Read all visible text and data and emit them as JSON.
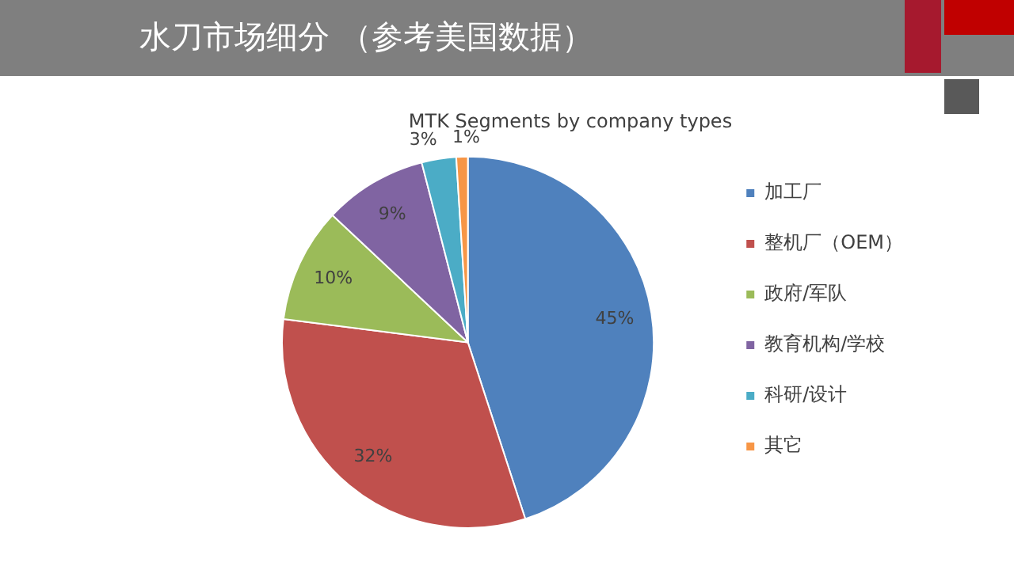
{
  "chart_data": {
    "type": "pie",
    "title": "水刀市场细分 （参考美国数据）",
    "subtitle": "MTK Segments by company types",
    "categories": [
      "加工厂",
      "整机厂（OEM）",
      "政府/军队",
      "教育机构/学校",
      "科研/设计",
      "其它"
    ],
    "values": [
      45,
      32,
      10,
      9,
      3,
      1
    ],
    "colors": [
      "#4f81bd",
      "#c0504d",
      "#9bbb59",
      "#8064a2",
      "#4bacc6",
      "#f79646"
    ],
    "value_labels": [
      "45%",
      "32%",
      "10%",
      "9%",
      "3%",
      "1%"
    ],
    "legend": "right"
  }
}
